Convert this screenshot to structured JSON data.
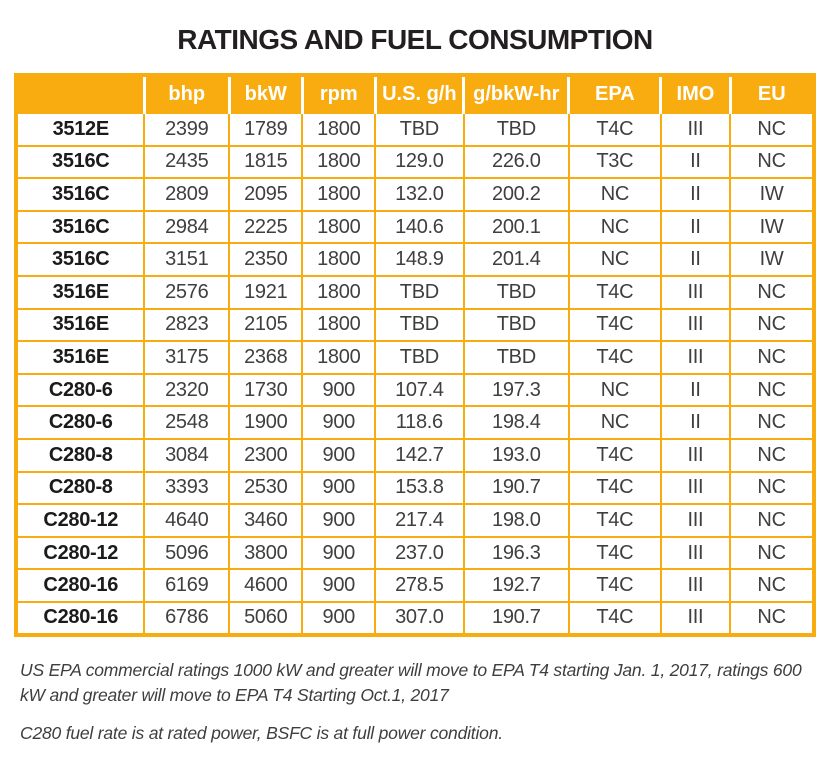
{
  "title": "RATINGS AND FUEL CONSUMPTION",
  "colors": {
    "accent_orange": "#F8AC10",
    "header_text": "#FFFFFF",
    "title_text": "#231F20",
    "body_text": "#3F3F3F",
    "model_text": "#1B1B1B"
  },
  "table": {
    "headers": [
      "",
      "bhp",
      "bkW",
      "rpm",
      "U.S. g/h",
      "g/bkW-hr",
      "EPA",
      "IMO",
      "EU"
    ],
    "rows": [
      [
        "3512E",
        "2399",
        "1789",
        "1800",
        "TBD",
        "TBD",
        "T4C",
        "III",
        "NC"
      ],
      [
        "3516C",
        "2435",
        "1815",
        "1800",
        "129.0",
        "226.0",
        "T3C",
        "II",
        "NC"
      ],
      [
        "3516C",
        "2809",
        "2095",
        "1800",
        "132.0",
        "200.2",
        "NC",
        "II",
        "IW"
      ],
      [
        "3516C",
        "2984",
        "2225",
        "1800",
        "140.6",
        "200.1",
        "NC",
        "II",
        "IW"
      ],
      [
        "3516C",
        "3151",
        "2350",
        "1800",
        "148.9",
        "201.4",
        "NC",
        "II",
        "IW"
      ],
      [
        "3516E",
        "2576",
        "1921",
        "1800",
        "TBD",
        "TBD",
        "T4C",
        "III",
        "NC"
      ],
      [
        "3516E",
        "2823",
        "2105",
        "1800",
        "TBD",
        "TBD",
        "T4C",
        "III",
        "NC"
      ],
      [
        "3516E",
        "3175",
        "2368",
        "1800",
        "TBD",
        "TBD",
        "T4C",
        "III",
        "NC"
      ],
      [
        "C280-6",
        "2320",
        "1730",
        "900",
        "107.4",
        "197.3",
        "NC",
        "II",
        "NC"
      ],
      [
        "C280-6",
        "2548",
        "1900",
        "900",
        "118.6",
        "198.4",
        "NC",
        "II",
        "NC"
      ],
      [
        "C280-8",
        "3084",
        "2300",
        "900",
        "142.7",
        "193.0",
        "T4C",
        "III",
        "NC"
      ],
      [
        "C280-8",
        "3393",
        "2530",
        "900",
        "153.8",
        "190.7",
        "T4C",
        "III",
        "NC"
      ],
      [
        "C280-12",
        "4640",
        "3460",
        "900",
        "217.4",
        "198.0",
        "T4C",
        "III",
        "NC"
      ],
      [
        "C280-12",
        "5096",
        "3800",
        "900",
        "237.0",
        "196.3",
        "T4C",
        "III",
        "NC"
      ],
      [
        "C280-16",
        "6169",
        "4600",
        "900",
        "278.5",
        "192.7",
        "T4C",
        "III",
        "NC"
      ],
      [
        "C280-16",
        "6786",
        "5060",
        "900",
        "307.0",
        "190.7",
        "T4C",
        "III",
        "NC"
      ]
    ]
  },
  "notes": [
    "US EPA commercial ratings 1000 kW and greater will move to EPA T4 starting Jan. 1, 2017, ratings 600 kW and greater will move to EPA T4 Starting Oct.1, 2017",
    "C280 fuel rate is at rated power, BSFC is at full power condition."
  ]
}
